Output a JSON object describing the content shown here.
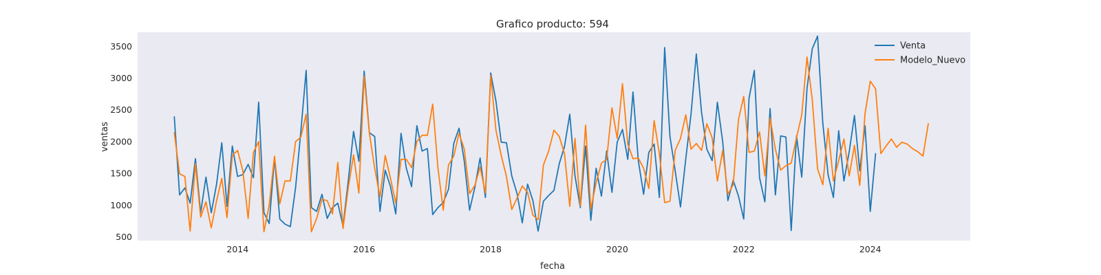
{
  "chart_data": {
    "type": "line",
    "title": "Grafico producto: 594",
    "xlabel": "fecha",
    "ylabel": "ventas",
    "x_start": "2013-01",
    "x_step": "month",
    "xlim": [
      2012.42,
      2025.58
    ],
    "ylim": [
      440,
      3720
    ],
    "x_ticks": [
      2014,
      2016,
      2018,
      2020,
      2022,
      2024
    ],
    "x_tick_labels": [
      "2014",
      "2016",
      "2018",
      "2020",
      "2022",
      "2024"
    ],
    "y_ticks": [
      500,
      1000,
      1500,
      2000,
      2500,
      3000,
      3500
    ],
    "y_tick_labels": [
      "500",
      "1000",
      "1500",
      "2000",
      "2500",
      "3000",
      "3500"
    ],
    "grid": false,
    "background": "#eaeaf2",
    "legend_position": "top-right",
    "series": [
      {
        "name": "Venta",
        "color": "#1f77b4",
        "values": [
          2390,
          1160,
          1270,
          1030,
          1730,
          880,
          1440,
          880,
          1320,
          1980,
          980,
          1930,
          1450,
          1480,
          1640,
          1430,
          2620,
          880,
          710,
          1740,
          780,
          700,
          660,
          1280,
          2160,
          3120,
          960,
          900,
          1170,
          790,
          960,
          1030,
          670,
          1390,
          2160,
          1690,
          3110,
          2140,
          2080,
          900,
          1550,
          1290,
          860,
          2130,
          1580,
          1290,
          2250,
          1850,
          1890,
          850,
          960,
          1040,
          1250,
          1970,
          2210,
          1690,
          920,
          1280,
          1740,
          1120,
          3080,
          2640,
          1990,
          1980,
          1460,
          1180,
          720,
          1330,
          1070,
          590,
          1060,
          1150,
          1230,
          1650,
          1920,
          2430,
          1460,
          960,
          1930,
          760,
          1580,
          1140,
          1850,
          1200,
          1990,
          2190,
          1720,
          2780,
          1700,
          1170,
          1830,
          1960,
          1120,
          3480,
          2080,
          1540,
          970,
          1730,
          2430,
          3380,
          2460,
          1880,
          1700,
          2620,
          2000,
          1070,
          1390,
          1140,
          780,
          2680,
          3120,
          1430,
          1050,
          2520,
          1160,
          2090,
          2070,
          600,
          2090,
          1440,
          2840,
          3460,
          3660,
          2280,
          1480,
          1120,
          2170,
          1380,
          1840,
          2410,
          1540,
          2250,
          900,
          1810
        ],
        "labels": []
      },
      {
        "name": "Modelo_Nuevo",
        "color": "#ff7f0e",
        "values": [
          2140,
          1490,
          1450,
          590,
          1650,
          810,
          1050,
          640,
          1060,
          1420,
          800,
          1780,
          1860,
          1540,
          790,
          1830,
          2000,
          580,
          1000,
          1770,
          1020,
          1380,
          1380,
          2000,
          2070,
          2430,
          580,
          790,
          1090,
          1070,
          860,
          1670,
          630,
          1280,
          1790,
          1190,
          3030,
          2130,
          1580,
          1130,
          1780,
          1420,
          1030,
          1720,
          1720,
          1590,
          2000,
          2100,
          2100,
          2590,
          1590,
          920,
          1630,
          1770,
          2130,
          1880,
          1180,
          1310,
          1600,
          1190,
          3040,
          2180,
          1780,
          1450,
          930,
          1110,
          1300,
          1200,
          840,
          770,
          1630,
          1850,
          2180,
          2080,
          1810,
          980,
          2050,
          980,
          2260,
          940,
          1350,
          1660,
          1720,
          2530,
          2050,
          2910,
          1960,
          1730,
          1740,
          1580,
          1260,
          2330,
          1810,
          1040,
          1060,
          1860,
          2050,
          2420,
          1880,
          1970,
          1860,
          2280,
          2060,
          1380,
          1860,
          1170,
          1320,
          2350,
          2710,
          1830,
          1850,
          2150,
          1460,
          2370,
          1880,
          1550,
          1620,
          1660,
          2060,
          2420,
          3330,
          2660,
          1570,
          1320,
          2210,
          1380,
          1700,
          2040,
          1460,
          1940,
          1310,
          2440,
          2950,
          2830,
          1810,
          1930,
          2040,
          1910,
          1990,
          1960,
          1890,
          1840,
          1770,
          2280
        ],
        "labels": []
      }
    ]
  }
}
